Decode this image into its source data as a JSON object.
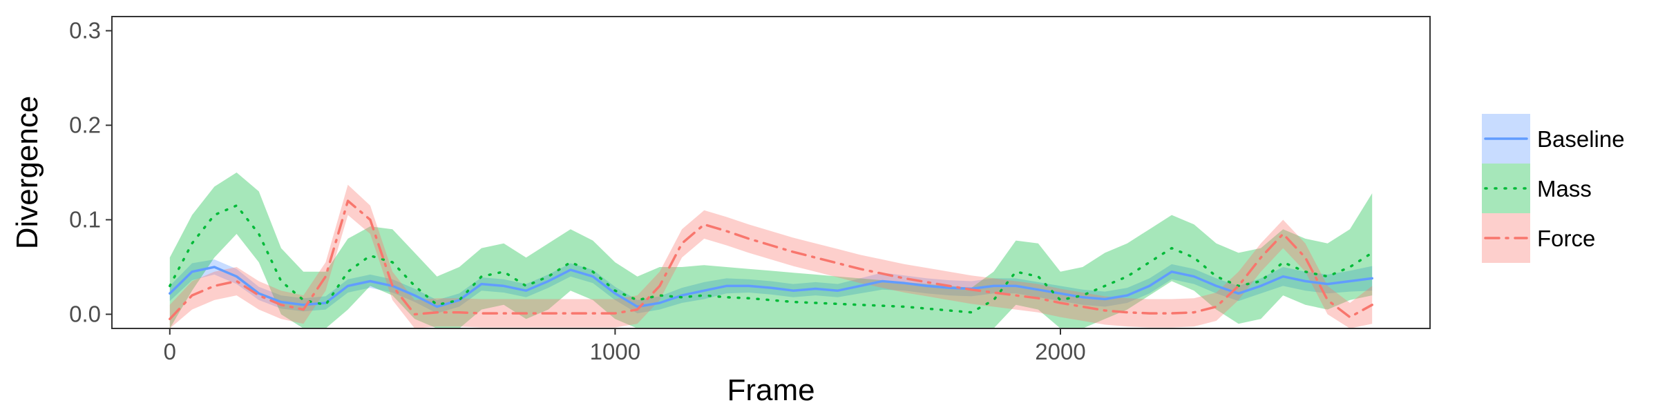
{
  "chart_data": {
    "type": "line",
    "xlabel": "Frame",
    "ylabel": "Divergence",
    "xlim": [
      -130,
      2830
    ],
    "ylim": [
      -0.015,
      0.315
    ],
    "xticks": [
      0,
      1000,
      2000
    ],
    "xtick_labels": [
      "0",
      "1000",
      "2000"
    ],
    "yticks": [
      0.0,
      0.1,
      0.2,
      0.3
    ],
    "ytick_labels": [
      "0.0",
      "0.1",
      "0.2",
      "0.3"
    ],
    "grid": false,
    "legend_position": "right",
    "x": [
      0,
      50,
      100,
      150,
      200,
      250,
      300,
      350,
      400,
      450,
      500,
      550,
      600,
      650,
      700,
      750,
      800,
      850,
      900,
      950,
      1000,
      1050,
      1100,
      1150,
      1200,
      1250,
      1300,
      1350,
      1400,
      1450,
      1500,
      1550,
      1600,
      1650,
      1700,
      1750,
      1800,
      1850,
      1900,
      1950,
      2000,
      2050,
      2100,
      2150,
      2200,
      2250,
      2300,
      2350,
      2400,
      2450,
      2500,
      2550,
      2600,
      2650,
      2700
    ],
    "series": [
      {
        "name": "Baseline",
        "color": "#619CFF",
        "line_style": "solid",
        "values": [
          0.022,
          0.045,
          0.05,
          0.04,
          0.022,
          0.013,
          0.01,
          0.012,
          0.03,
          0.035,
          0.03,
          0.02,
          0.008,
          0.015,
          0.032,
          0.03,
          0.025,
          0.035,
          0.047,
          0.04,
          0.022,
          0.008,
          0.012,
          0.02,
          0.025,
          0.03,
          0.03,
          0.028,
          0.025,
          0.027,
          0.025,
          0.03,
          0.035,
          0.033,
          0.03,
          0.028,
          0.027,
          0.03,
          0.03,
          0.026,
          0.022,
          0.018,
          0.016,
          0.02,
          0.03,
          0.045,
          0.04,
          0.03,
          0.022,
          0.03,
          0.04,
          0.035,
          0.032,
          0.035,
          0.038
        ],
        "lower": [
          0.014,
          0.036,
          0.042,
          0.032,
          0.015,
          0.006,
          0.003,
          0.005,
          0.023,
          0.028,
          0.023,
          0.013,
          0.001,
          0.008,
          0.025,
          0.023,
          0.018,
          0.028,
          0.04,
          0.033,
          0.015,
          0.001,
          0.005,
          0.012,
          0.016,
          0.022,
          0.023,
          0.021,
          0.018,
          0.02,
          0.018,
          0.022,
          0.026,
          0.025,
          0.022,
          0.02,
          0.019,
          0.022,
          0.022,
          0.018,
          0.014,
          0.01,
          0.008,
          0.012,
          0.022,
          0.037,
          0.032,
          0.022,
          0.014,
          0.022,
          0.03,
          0.025,
          0.022,
          0.024,
          0.025
        ],
        "upper": [
          0.03,
          0.054,
          0.058,
          0.048,
          0.029,
          0.02,
          0.017,
          0.019,
          0.037,
          0.042,
          0.037,
          0.027,
          0.015,
          0.022,
          0.039,
          0.037,
          0.032,
          0.042,
          0.054,
          0.047,
          0.029,
          0.015,
          0.019,
          0.028,
          0.034,
          0.038,
          0.037,
          0.035,
          0.032,
          0.034,
          0.032,
          0.038,
          0.044,
          0.041,
          0.038,
          0.036,
          0.035,
          0.038,
          0.038,
          0.034,
          0.03,
          0.026,
          0.024,
          0.028,
          0.038,
          0.053,
          0.048,
          0.038,
          0.03,
          0.038,
          0.05,
          0.045,
          0.042,
          0.046,
          0.051
        ]
      },
      {
        "name": "Mass",
        "color": "#00BA38",
        "line_style": "dotted",
        "values": [
          0.03,
          0.075,
          0.105,
          0.115,
          0.085,
          0.035,
          0.015,
          0.01,
          0.045,
          0.062,
          0.055,
          0.03,
          0.01,
          0.015,
          0.04,
          0.045,
          0.03,
          0.04,
          0.055,
          0.045,
          0.025,
          0.015,
          0.02,
          0.018,
          0.02,
          0.018,
          0.017,
          0.015,
          0.013,
          0.012,
          0.011,
          0.01,
          0.009,
          0.008,
          0.006,
          0.004,
          0.002,
          0.015,
          0.045,
          0.04,
          0.015,
          0.02,
          0.03,
          0.04,
          0.055,
          0.07,
          0.06,
          0.04,
          0.03,
          0.035,
          0.055,
          0.045,
          0.04,
          0.05,
          0.065
        ],
        "lower": [
          -0.015,
          0.025,
          0.06,
          0.085,
          0.055,
          0.0,
          -0.015,
          -0.015,
          0.005,
          0.03,
          0.02,
          -0.005,
          -0.015,
          -0.015,
          0.005,
          0.01,
          -0.005,
          0.005,
          0.025,
          0.015,
          -0.005,
          -0.015,
          -0.015,
          -0.015,
          -0.015,
          -0.015,
          -0.015,
          -0.015,
          -0.015,
          -0.015,
          -0.015,
          -0.015,
          -0.015,
          -0.015,
          -0.015,
          -0.015,
          -0.015,
          -0.015,
          0.01,
          0.005,
          -0.015,
          -0.015,
          -0.005,
          0.005,
          0.02,
          0.035,
          0.025,
          0.005,
          -0.01,
          -0.005,
          0.02,
          0.01,
          0.005,
          0.015,
          0.02
        ],
        "upper": [
          0.06,
          0.105,
          0.135,
          0.15,
          0.13,
          0.07,
          0.045,
          0.045,
          0.08,
          0.093,
          0.09,
          0.065,
          0.04,
          0.05,
          0.07,
          0.075,
          0.06,
          0.075,
          0.09,
          0.078,
          0.055,
          0.04,
          0.05,
          0.05,
          0.052,
          0.05,
          0.048,
          0.046,
          0.044,
          0.042,
          0.04,
          0.038,
          0.036,
          0.034,
          0.032,
          0.03,
          0.028,
          0.045,
          0.078,
          0.075,
          0.045,
          0.05,
          0.065,
          0.075,
          0.09,
          0.105,
          0.095,
          0.075,
          0.065,
          0.07,
          0.09,
          0.08,
          0.075,
          0.09,
          0.128
        ]
      },
      {
        "name": "Force",
        "color": "#F8766D",
        "line_style": "dashdot",
        "values": [
          -0.005,
          0.02,
          0.03,
          0.035,
          0.02,
          0.01,
          0.005,
          0.04,
          0.12,
          0.1,
          0.03,
          0.0,
          0.002,
          0.002,
          0.001,
          0.001,
          0.001,
          0.001,
          0.001,
          0.001,
          0.001,
          0.005,
          0.03,
          0.075,
          0.095,
          0.088,
          0.08,
          0.073,
          0.066,
          0.06,
          0.054,
          0.048,
          0.043,
          0.038,
          0.034,
          0.03,
          0.026,
          0.023,
          0.02,
          0.017,
          0.012,
          0.008,
          0.004,
          0.002,
          0.001,
          0.001,
          0.002,
          0.008,
          0.03,
          0.06,
          0.085,
          0.06,
          0.015,
          -0.003,
          0.01
        ],
        "lower": [
          -0.015,
          0.005,
          0.015,
          0.02,
          0.005,
          -0.005,
          -0.01,
          0.025,
          0.105,
          0.085,
          0.015,
          -0.015,
          -0.013,
          -0.013,
          -0.014,
          -0.014,
          -0.014,
          -0.014,
          -0.014,
          -0.014,
          -0.014,
          -0.01,
          0.015,
          0.06,
          0.08,
          0.073,
          0.065,
          0.058,
          0.051,
          0.045,
          0.039,
          0.033,
          0.028,
          0.023,
          0.019,
          0.015,
          0.011,
          0.008,
          0.005,
          0.002,
          -0.003,
          -0.007,
          -0.011,
          -0.013,
          -0.014,
          -0.014,
          -0.013,
          -0.007,
          0.015,
          0.045,
          0.07,
          0.045,
          0.0,
          -0.015,
          -0.01
        ],
        "upper": [
          0.01,
          0.035,
          0.045,
          0.05,
          0.035,
          0.025,
          0.02,
          0.055,
          0.137,
          0.115,
          0.045,
          0.015,
          0.017,
          0.017,
          0.016,
          0.016,
          0.016,
          0.016,
          0.016,
          0.016,
          0.016,
          0.02,
          0.045,
          0.09,
          0.11,
          0.103,
          0.095,
          0.088,
          0.081,
          0.075,
          0.069,
          0.063,
          0.058,
          0.053,
          0.049,
          0.045,
          0.041,
          0.038,
          0.035,
          0.032,
          0.027,
          0.023,
          0.019,
          0.017,
          0.016,
          0.016,
          0.017,
          0.023,
          0.045,
          0.075,
          0.1,
          0.075,
          0.03,
          0.012,
          0.03
        ]
      }
    ]
  }
}
